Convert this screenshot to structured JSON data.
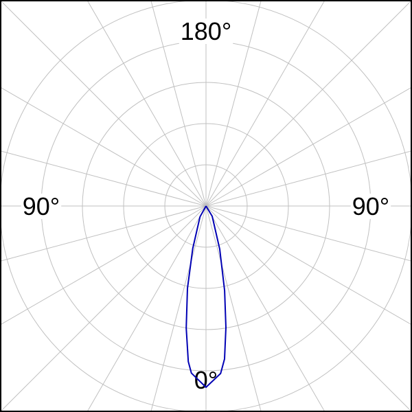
{
  "chart_data": {
    "type": "polar-line",
    "title": "",
    "angle_labels": {
      "top": "180°",
      "left": "90°",
      "right": "90°",
      "bottom": "0°"
    },
    "radial_range": [
      0,
      5
    ],
    "ring_values": [
      1,
      2,
      3,
      4,
      5
    ],
    "spoke_step_deg": 15,
    "grid": true,
    "series": [
      {
        "color": "#0000b4",
        "points": [
          {
            "angle": -90,
            "value": 0
          },
          {
            "angle": -29,
            "value": 0.3
          },
          {
            "angle": -17.3,
            "value": 1.08
          },
          {
            "angle": -12.7,
            "value": 2.05
          },
          {
            "angle": -9.2,
            "value": 3.0
          },
          {
            "angle": -6.5,
            "value": 3.8
          },
          {
            "angle": -5,
            "value": 4.07
          },
          {
            "angle": 0,
            "value": 4.4
          },
          {
            "angle": 5,
            "value": 4.08
          },
          {
            "angle": 6.9,
            "value": 3.74
          },
          {
            "angle": 9.3,
            "value": 2.99
          },
          {
            "angle": 12.4,
            "value": 2.1
          },
          {
            "angle": 17.6,
            "value": 1.1
          },
          {
            "angle": 31,
            "value": 0.29
          },
          {
            "angle": 90,
            "value": 0
          }
        ]
      }
    ],
    "colors": {
      "grid": "#c0c0c0",
      "border": "#000000"
    }
  }
}
